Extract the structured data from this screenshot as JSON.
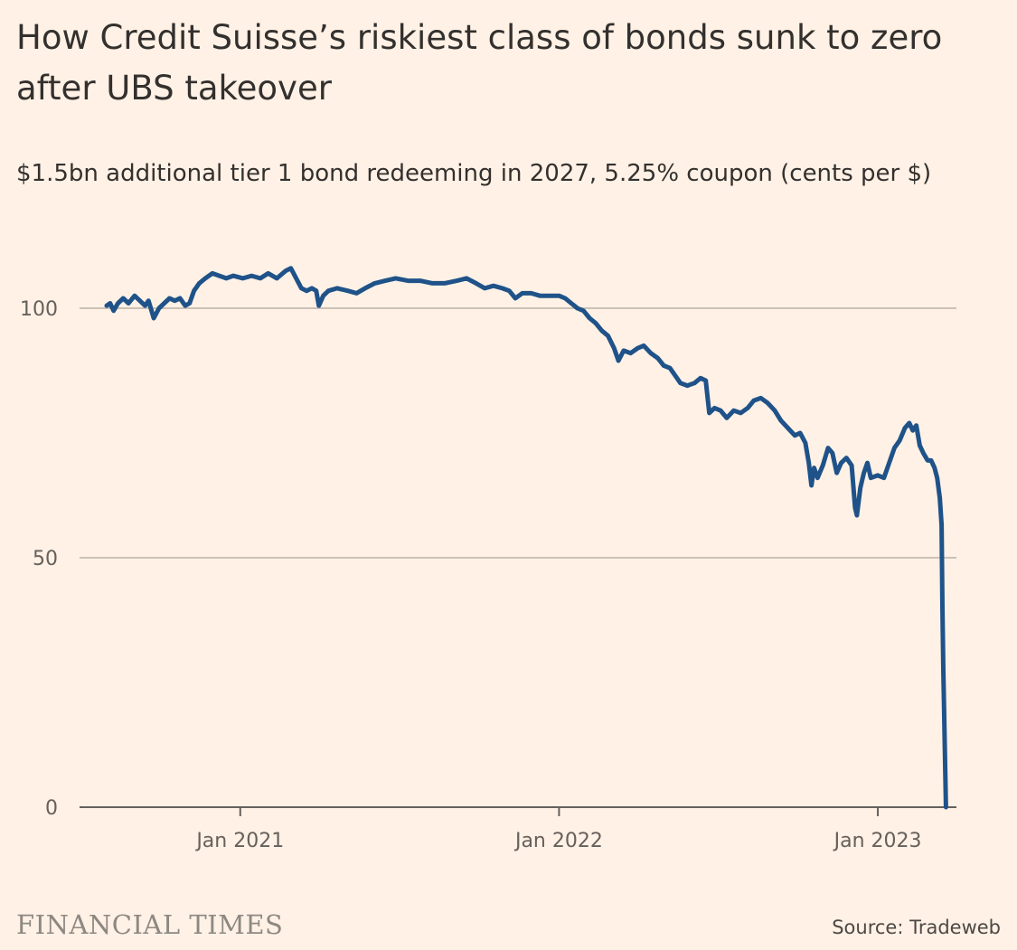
{
  "header": {
    "title": "How Credit Suisse’s riskiest class of bonds sunk to zero after UBS takeover",
    "subtitle": "$1.5bn additional tier 1 bond redeeming in 2027, 5.25% coupon (cents per $)"
  },
  "footer": {
    "brand": "FINANCIAL TIMES",
    "source": "Source: Tradeweb"
  },
  "colors": {
    "background": "#fff1e5",
    "line": "#1f5289",
    "grid": "#ccc1b7",
    "axis": "#66605c"
  },
  "chart_data": {
    "type": "line",
    "title": "How Credit Suisse’s riskiest class of bonds sunk to zero after UBS takeover",
    "subtitle": "$1.5bn additional tier 1 bond redeeming in 2027, 5.25% coupon (cents per $)",
    "xlabel": "",
    "ylabel": "",
    "xlim": [
      "2020-07-01",
      "2023-04-01"
    ],
    "ylim": [
      0,
      110
    ],
    "grid": true,
    "y_ticks": [
      0,
      50,
      100
    ],
    "x_ticks": [
      {
        "date": "2021-01-01",
        "label": "Jan 2021"
      },
      {
        "date": "2022-01-01",
        "label": "Jan 2022"
      },
      {
        "date": "2023-01-01",
        "label": "Jan 2023"
      }
    ],
    "series": [
      {
        "name": "",
        "points": [
          [
            "2020-08-01",
            100.5
          ],
          [
            "2020-08-05",
            101.0
          ],
          [
            "2020-08-09",
            99.5
          ],
          [
            "2020-08-14",
            101.0
          ],
          [
            "2020-08-20",
            102.0
          ],
          [
            "2020-08-26",
            101.0
          ],
          [
            "2020-09-02",
            102.5
          ],
          [
            "2020-09-08",
            101.5
          ],
          [
            "2020-09-14",
            100.5
          ],
          [
            "2020-09-18",
            101.5
          ],
          [
            "2020-09-24",
            98.0
          ],
          [
            "2020-09-30",
            100.0
          ],
          [
            "2020-10-06",
            101.0
          ],
          [
            "2020-10-12",
            102.0
          ],
          [
            "2020-10-18",
            101.5
          ],
          [
            "2020-10-24",
            102.0
          ],
          [
            "2020-10-30",
            100.5
          ],
          [
            "2020-11-04",
            101.0
          ],
          [
            "2020-11-09",
            103.5
          ],
          [
            "2020-11-15",
            105.0
          ],
          [
            "2020-11-22",
            106.0
          ],
          [
            "2020-11-30",
            107.0
          ],
          [
            "2020-12-08",
            106.5
          ],
          [
            "2020-12-16",
            106.0
          ],
          [
            "2020-12-24",
            106.5
          ],
          [
            "2021-01-04",
            106.0
          ],
          [
            "2021-01-14",
            106.5
          ],
          [
            "2021-01-24",
            106.0
          ],
          [
            "2021-02-02",
            107.0
          ],
          [
            "2021-02-12",
            106.0
          ],
          [
            "2021-02-22",
            107.5
          ],
          [
            "2021-02-28",
            108.0
          ],
          [
            "2021-03-06",
            106.0
          ],
          [
            "2021-03-12",
            104.0
          ],
          [
            "2021-03-18",
            103.5
          ],
          [
            "2021-03-24",
            104.0
          ],
          [
            "2021-03-29",
            103.5
          ],
          [
            "2021-04-01",
            100.5
          ],
          [
            "2021-04-06",
            102.5
          ],
          [
            "2021-04-12",
            103.5
          ],
          [
            "2021-04-22",
            104.0
          ],
          [
            "2021-05-04",
            103.5
          ],
          [
            "2021-05-14",
            103.0
          ],
          [
            "2021-05-24",
            104.0
          ],
          [
            "2021-06-04",
            105.0
          ],
          [
            "2021-06-16",
            105.5
          ],
          [
            "2021-06-28",
            106.0
          ],
          [
            "2021-07-12",
            105.5
          ],
          [
            "2021-07-26",
            105.5
          ],
          [
            "2021-08-09",
            105.0
          ],
          [
            "2021-08-23",
            105.0
          ],
          [
            "2021-09-06",
            105.5
          ],
          [
            "2021-09-17",
            106.0
          ],
          [
            "2021-09-28",
            105.0
          ],
          [
            "2021-10-08",
            104.0
          ],
          [
            "2021-10-18",
            104.5
          ],
          [
            "2021-10-28",
            104.0
          ],
          [
            "2021-11-05",
            103.5
          ],
          [
            "2021-11-12",
            102.0
          ],
          [
            "2021-11-20",
            103.0
          ],
          [
            "2021-11-30",
            103.0
          ],
          [
            "2021-12-10",
            102.5
          ],
          [
            "2021-12-20",
            102.5
          ],
          [
            "2022-01-01",
            102.5
          ],
          [
            "2022-01-08",
            102.0
          ],
          [
            "2022-01-15",
            101.0
          ],
          [
            "2022-01-22",
            100.0
          ],
          [
            "2022-01-29",
            99.5
          ],
          [
            "2022-02-05",
            98.0
          ],
          [
            "2022-02-12",
            97.0
          ],
          [
            "2022-02-19",
            95.5
          ],
          [
            "2022-02-26",
            94.5
          ],
          [
            "2022-03-05",
            92.0
          ],
          [
            "2022-03-10",
            89.5
          ],
          [
            "2022-03-16",
            91.5
          ],
          [
            "2022-03-24",
            91.0
          ],
          [
            "2022-04-01",
            92.0
          ],
          [
            "2022-04-08",
            92.5
          ],
          [
            "2022-04-16",
            91.0
          ],
          [
            "2022-04-24",
            90.0
          ],
          [
            "2022-05-01",
            88.5
          ],
          [
            "2022-05-08",
            88.0
          ],
          [
            "2022-05-14",
            86.5
          ],
          [
            "2022-05-20",
            85.0
          ],
          [
            "2022-05-28",
            84.5
          ],
          [
            "2022-06-05",
            85.0
          ],
          [
            "2022-06-12",
            86.0
          ],
          [
            "2022-06-18",
            85.5
          ],
          [
            "2022-06-22",
            79.0
          ],
          [
            "2022-06-28",
            80.0
          ],
          [
            "2022-07-05",
            79.5
          ],
          [
            "2022-07-12",
            78.0
          ],
          [
            "2022-07-20",
            79.5
          ],
          [
            "2022-07-28",
            79.0
          ],
          [
            "2022-08-05",
            80.0
          ],
          [
            "2022-08-12",
            81.5
          ],
          [
            "2022-08-20",
            82.0
          ],
          [
            "2022-08-28",
            81.0
          ],
          [
            "2022-09-05",
            79.5
          ],
          [
            "2022-09-12",
            77.5
          ],
          [
            "2022-09-20",
            76.0
          ],
          [
            "2022-09-28",
            74.5
          ],
          [
            "2022-10-04",
            75.0
          ],
          [
            "2022-10-10",
            73.0
          ],
          [
            "2022-10-14",
            69.0
          ],
          [
            "2022-10-17",
            64.5
          ],
          [
            "2022-10-20",
            68.0
          ],
          [
            "2022-10-24",
            66.0
          ],
          [
            "2022-10-30",
            68.5
          ],
          [
            "2022-11-05",
            72.0
          ],
          [
            "2022-11-10",
            71.0
          ],
          [
            "2022-11-15",
            67.0
          ],
          [
            "2022-11-20",
            69.0
          ],
          [
            "2022-11-26",
            70.0
          ],
          [
            "2022-12-02",
            68.5
          ],
          [
            "2022-12-06",
            60.0
          ],
          [
            "2022-12-08",
            58.5
          ],
          [
            "2022-12-12",
            64.0
          ],
          [
            "2022-12-16",
            67.0
          ],
          [
            "2022-12-20",
            69.0
          ],
          [
            "2022-12-24",
            66.0
          ],
          [
            "2023-01-01",
            66.5
          ],
          [
            "2023-01-08",
            66.0
          ],
          [
            "2023-01-14",
            69.0
          ],
          [
            "2023-01-20",
            72.0
          ],
          [
            "2023-01-26",
            73.5
          ],
          [
            "2023-02-01",
            76.0
          ],
          [
            "2023-02-06",
            77.0
          ],
          [
            "2023-02-10",
            75.5
          ],
          [
            "2023-02-14",
            76.5
          ],
          [
            "2023-02-18",
            72.5
          ],
          [
            "2023-02-22",
            71.0
          ],
          [
            "2023-02-27",
            69.5
          ],
          [
            "2023-03-03",
            69.5
          ],
          [
            "2023-03-07",
            68.0
          ],
          [
            "2023-03-10",
            66.0
          ],
          [
            "2023-03-13",
            62.0
          ],
          [
            "2023-03-15",
            56.5
          ],
          [
            "2023-03-16",
            40.0
          ],
          [
            "2023-03-17",
            27.5
          ],
          [
            "2023-03-20",
            0.0
          ]
        ]
      }
    ]
  }
}
